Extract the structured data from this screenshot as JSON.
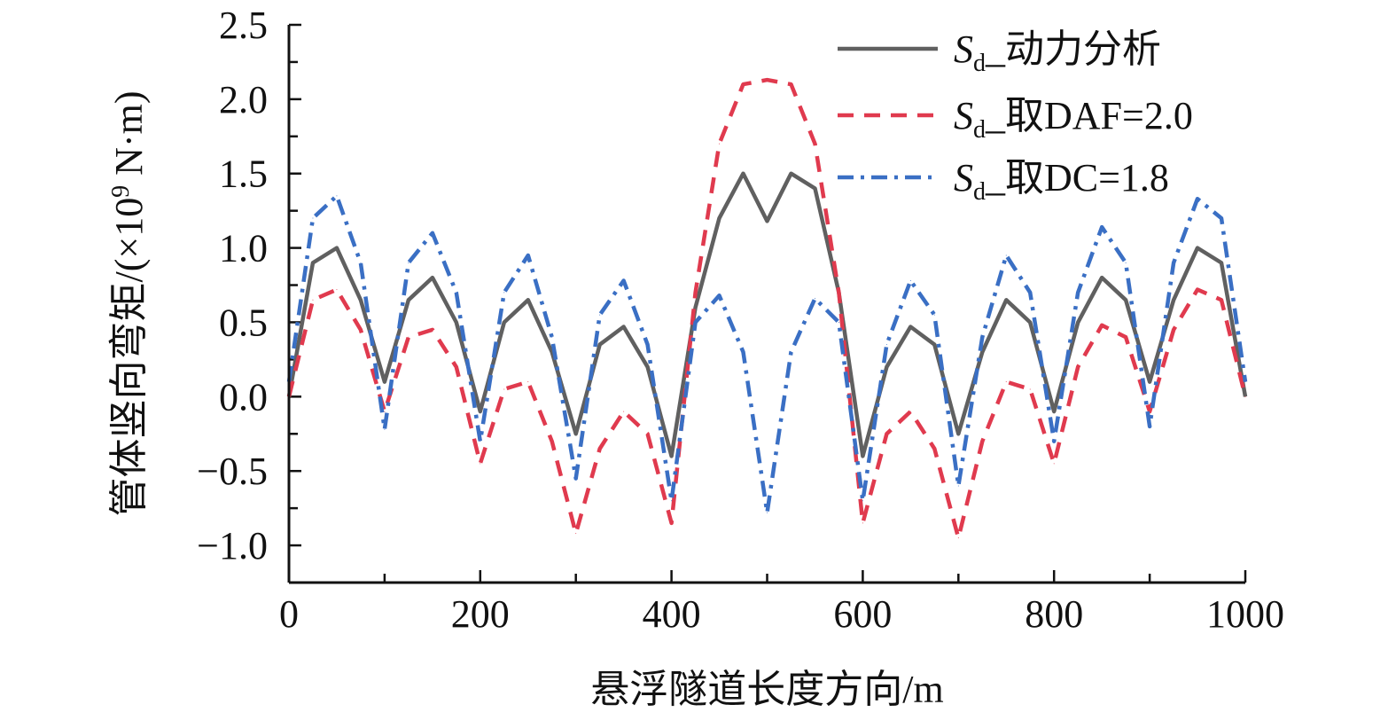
{
  "chart_data": {
    "type": "line",
    "xlabel": "悬浮隧道长度方向/m",
    "ylabel_main": "管体竖向弯矩/(×10",
    "ylabel_sup": "9",
    "ylabel_tail": " N·m)",
    "xlim": [
      0,
      1000
    ],
    "ylim": [
      -1.25,
      2.5
    ],
    "xticks": [
      0,
      200,
      400,
      600,
      800,
      1000
    ],
    "xtick_labels": [
      "0",
      "200",
      "400",
      "600",
      "800",
      "1000"
    ],
    "yticks": [
      -1.0,
      -0.5,
      0.0,
      0.5,
      1.0,
      1.5,
      2.0,
      2.5
    ],
    "ytick_labels": [
      "−1.0",
      "−0.5",
      "0.0",
      "0.5",
      "1.0",
      "1.5",
      "2.0",
      "2.5"
    ],
    "grid": false,
    "legend_position": "top-right",
    "x": [
      0,
      25,
      50,
      75,
      100,
      125,
      150,
      175,
      200,
      225,
      250,
      275,
      300,
      325,
      350,
      375,
      400,
      425,
      450,
      475,
      500,
      525,
      550,
      575,
      600,
      625,
      650,
      675,
      700,
      725,
      750,
      775,
      800,
      825,
      850,
      875,
      900,
      925,
      950,
      975,
      1000
    ],
    "series": [
      {
        "legend_sym": "S",
        "legend_sub": "d",
        "legend_rest": "_动力分析",
        "color": "#606060",
        "dash": "none",
        "values": [
          0.0,
          0.9,
          1.0,
          0.65,
          0.1,
          0.65,
          0.8,
          0.5,
          -0.1,
          0.5,
          0.65,
          0.3,
          -0.25,
          0.35,
          0.47,
          0.2,
          -0.4,
          0.6,
          1.2,
          1.5,
          1.18,
          1.5,
          1.4,
          0.7,
          -0.4,
          0.2,
          0.47,
          0.35,
          -0.25,
          0.3,
          0.65,
          0.5,
          -0.1,
          0.5,
          0.8,
          0.65,
          0.1,
          0.65,
          1.0,
          0.9,
          0.0
        ]
      },
      {
        "legend_sym": "S",
        "legend_sub": "d",
        "legend_rest": "_取DAF=2.0",
        "color": "#e03a4e",
        "dash": "18,12",
        "values": [
          0.0,
          0.65,
          0.72,
          0.45,
          -0.1,
          0.4,
          0.45,
          0.2,
          -0.45,
          0.05,
          0.1,
          -0.3,
          -0.92,
          -0.35,
          -0.1,
          -0.25,
          -0.85,
          0.7,
          1.7,
          2.1,
          2.13,
          2.1,
          1.7,
          0.7,
          -0.85,
          -0.25,
          -0.1,
          -0.35,
          -0.95,
          -0.3,
          0.1,
          0.05,
          -0.45,
          0.2,
          0.48,
          0.4,
          -0.1,
          0.45,
          0.72,
          0.65,
          0.0
        ]
      },
      {
        "legend_sym": "S",
        "legend_sub": "d",
        "legend_rest": "_取DC=1.8",
        "color": "#3a6fc4",
        "dash": "18,8,4,8",
        "values": [
          0.1,
          1.2,
          1.35,
          0.9,
          -0.22,
          0.9,
          1.1,
          0.7,
          -0.3,
          0.7,
          0.95,
          0.4,
          -0.55,
          0.55,
          0.78,
          0.35,
          -0.7,
          0.5,
          0.68,
          0.3,
          -0.78,
          0.3,
          0.66,
          0.5,
          -0.7,
          0.35,
          0.78,
          0.55,
          -0.6,
          0.4,
          0.95,
          0.7,
          -0.3,
          0.7,
          1.14,
          0.9,
          -0.2,
          0.9,
          1.33,
          1.2,
          0.1
        ]
      }
    ]
  }
}
